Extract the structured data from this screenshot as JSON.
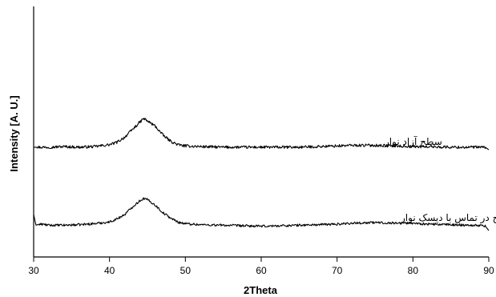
{
  "chart_data": {
    "type": "line",
    "title": "",
    "xlabel": "2Theta",
    "ylabel": "Intensity [A. U.]",
    "xlim": [
      30,
      90
    ],
    "x_ticks": [
      30,
      40,
      50,
      60,
      70,
      80,
      90
    ],
    "y_ticks": [],
    "grid": false,
    "legend": "none",
    "series": [
      {
        "label": "سطح آزاد نوار",
        "x": [
          30,
          32,
          34,
          36,
          38,
          40,
          41,
          42,
          43,
          44,
          44.5,
          45,
          46,
          47,
          48,
          49,
          50,
          52,
          55,
          60,
          65,
          70,
          72,
          75,
          78,
          80,
          82,
          85,
          88,
          89.5,
          90
        ],
        "y": [
          1.0,
          1.0,
          1.05,
          1.0,
          1.05,
          1.2,
          1.4,
          1.8,
          2.4,
          3.0,
          3.3,
          3.1,
          2.7,
          2.0,
          1.5,
          1.2,
          1.1,
          1.05,
          1.0,
          1.0,
          1.0,
          1.1,
          1.15,
          1.15,
          1.1,
          1.05,
          1.05,
          1.0,
          1.0,
          1.0,
          0.8
        ]
      },
      {
        "label": "سطح در تماس با دیسک نوار",
        "x": [
          30,
          30.3,
          31,
          32,
          34,
          36,
          38,
          40,
          41,
          42,
          43,
          44,
          44.5,
          45,
          46,
          47,
          48,
          49,
          50,
          52,
          55,
          60,
          65,
          70,
          72,
          75,
          78,
          80,
          82,
          85,
          88,
          89.5,
          90
        ],
        "y": [
          2.0,
          1.0,
          1.1,
          1.0,
          1.0,
          1.05,
          1.15,
          1.3,
          1.6,
          2.0,
          2.7,
          3.3,
          3.5,
          3.4,
          2.9,
          2.2,
          1.7,
          1.3,
          1.15,
          1.05,
          1.0,
          0.9,
          1.0,
          1.1,
          1.2,
          1.25,
          1.2,
          1.2,
          1.1,
          1.05,
          1.0,
          0.95,
          0.5
        ]
      }
    ],
    "annotations": [
      "سطح آزاد نوار",
      "سطح در تماس با دیسک نوار"
    ]
  }
}
